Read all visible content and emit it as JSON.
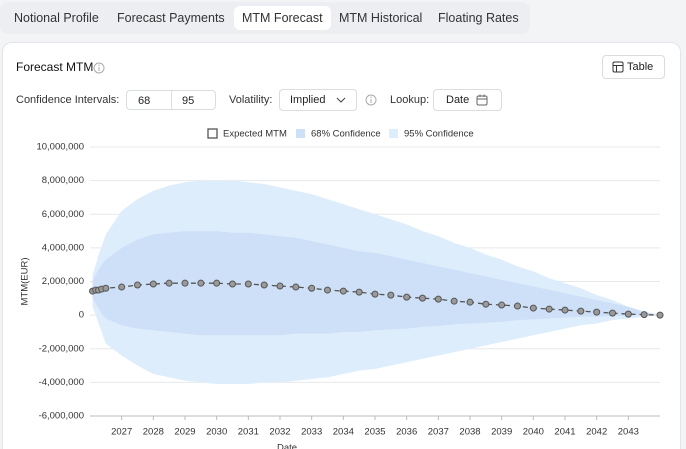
{
  "tabs": [
    "Notional Profile",
    "Forecast Payments",
    "MTM Forecast",
    "MTM Historical",
    "Floating Rates"
  ],
  "panel": {
    "title": "Forecast MTM",
    "table_button": "Table",
    "controls": {
      "confidence_label": "Confidence Intervals:",
      "confidence_values": [
        68,
        95
      ],
      "volatility_label": "Volatility:",
      "volatility_value": "Implied",
      "lookup_label": "Lookup:",
      "lookup_value": "Date"
    }
  },
  "chart_data": {
    "type": "line",
    "x_label": "Date",
    "y_label": "MTM(EUR)",
    "x": [
      2026.08,
      2026.18,
      2026.27,
      2026.37,
      2026.5,
      2027,
      2027.5,
      2028,
      2028.5,
      2029,
      2029.5,
      2030,
      2030.5,
      2031,
      2031.5,
      2032,
      2032.5,
      2033,
      2033.5,
      2034,
      2034.5,
      2035,
      2035.5,
      2036,
      2036.5,
      2037,
      2037.5,
      2038,
      2038.5,
      2039,
      2039.5,
      2040,
      2040.5,
      2041,
      2041.5,
      2042,
      2042.5,
      2043,
      2043.5,
      2044
    ],
    "xlim": [
      2026,
      2044
    ],
    "xticks": [
      2027,
      2028,
      2029,
      2030,
      2031,
      2032,
      2033,
      2034,
      2035,
      2036,
      2037,
      2038,
      2039,
      2040,
      2041,
      2042,
      2043
    ],
    "ylim": [
      -6000000,
      10000000
    ],
    "yticks": [
      {
        "value": -6000000,
        "label": "-6,000,000"
      },
      {
        "value": -4000000,
        "label": "-4,000,000"
      },
      {
        "value": -2000000,
        "label": "-2,000,000"
      },
      0,
      {
        "value": 2000000,
        "label": "2,000,000"
      },
      {
        "value": 4000000,
        "label": "4,000,000"
      },
      {
        "value": 6000000,
        "label": "6,000,000"
      },
      {
        "value": 8000000,
        "label": "8,000,000"
      },
      {
        "value": 10000000,
        "label": "10,000,000"
      }
    ],
    "grid": true,
    "legend": "top",
    "series": [
      {
        "name": "Expected MTM",
        "color": "#555555",
        "values": [
          1430000,
          1490000,
          1490000,
          1550000,
          1600000,
          1670000,
          1790000,
          1850000,
          1900000,
          1900000,
          1900000,
          1900000,
          1850000,
          1850000,
          1790000,
          1730000,
          1670000,
          1600000,
          1490000,
          1430000,
          1370000,
          1250000,
          1190000,
          1070000,
          1010000,
          950000,
          830000,
          770000,
          650000,
          600000,
          540000,
          420000,
          360000,
          300000,
          240000,
          180000,
          120000,
          60000,
          30000,
          0
        ]
      },
      {
        "name": "68% Confidence",
        "color": "#cde0f8",
        "type": "band",
        "values": [
          2000000,
          2400000,
          2700000,
          3000000,
          3300000,
          4000000,
          4500000,
          4800000,
          4900000,
          5000000,
          5000000,
          5000000,
          4900000,
          4900000,
          4800000,
          4700000,
          4600000,
          4400000,
          4200000,
          4000000,
          3800000,
          3700000,
          3500000,
          3300000,
          3100000,
          2900000,
          2700000,
          2500000,
          2300000,
          2100000,
          1900000,
          1700000,
          1500000,
          1300000,
          1100000,
          900000,
          700000,
          500000,
          200000,
          0
        ],
        "lower": [
          1000000,
          700000,
          400000,
          100000,
          -200000,
          -600000,
          -800000,
          -900000,
          -1000000,
          -1100000,
          -1200000,
          -1200000,
          -1200000,
          -1200000,
          -1200000,
          -1200000,
          -1100000,
          -1100000,
          -1100000,
          -1000000,
          -1000000,
          -900000,
          -850000,
          -800000,
          -700000,
          -650000,
          -550000,
          -500000,
          -450000,
          -400000,
          -300000,
          -250000,
          -200000,
          -150000,
          -100000,
          -100000,
          -50000,
          -20000,
          0,
          0
        ]
      },
      {
        "name": "95% Confidence",
        "color": "#deedfc",
        "type": "band",
        "values": [
          2400000,
          3000000,
          3600000,
          4100000,
          4800000,
          6200000,
          6900000,
          7400000,
          7700000,
          7900000,
          8000000,
          8000000,
          8000000,
          7900000,
          7800000,
          7600000,
          7400000,
          7200000,
          6900000,
          6600000,
          6300000,
          6000000,
          5700000,
          5400000,
          5000000,
          4700000,
          4300000,
          4000000,
          3600000,
          3300000,
          2900000,
          2600000,
          2200000,
          1900000,
          1600000,
          1200000,
          900000,
          500000,
          200000,
          0
        ],
        "lower": [
          500000,
          0,
          -500000,
          -1000000,
          -1700000,
          -2400000,
          -3000000,
          -3500000,
          -3700000,
          -3900000,
          -4000000,
          -4100000,
          -4100000,
          -4100000,
          -4000000,
          -4000000,
          -3900000,
          -3800000,
          -3700000,
          -3500000,
          -3300000,
          -3200000,
          -3000000,
          -2800000,
          -2600000,
          -2400000,
          -2200000,
          -2000000,
          -1800000,
          -1600000,
          -1400000,
          -1200000,
          -1000000,
          -800000,
          -600000,
          -500000,
          -300000,
          -200000,
          -100000,
          0
        ]
      }
    ]
  }
}
